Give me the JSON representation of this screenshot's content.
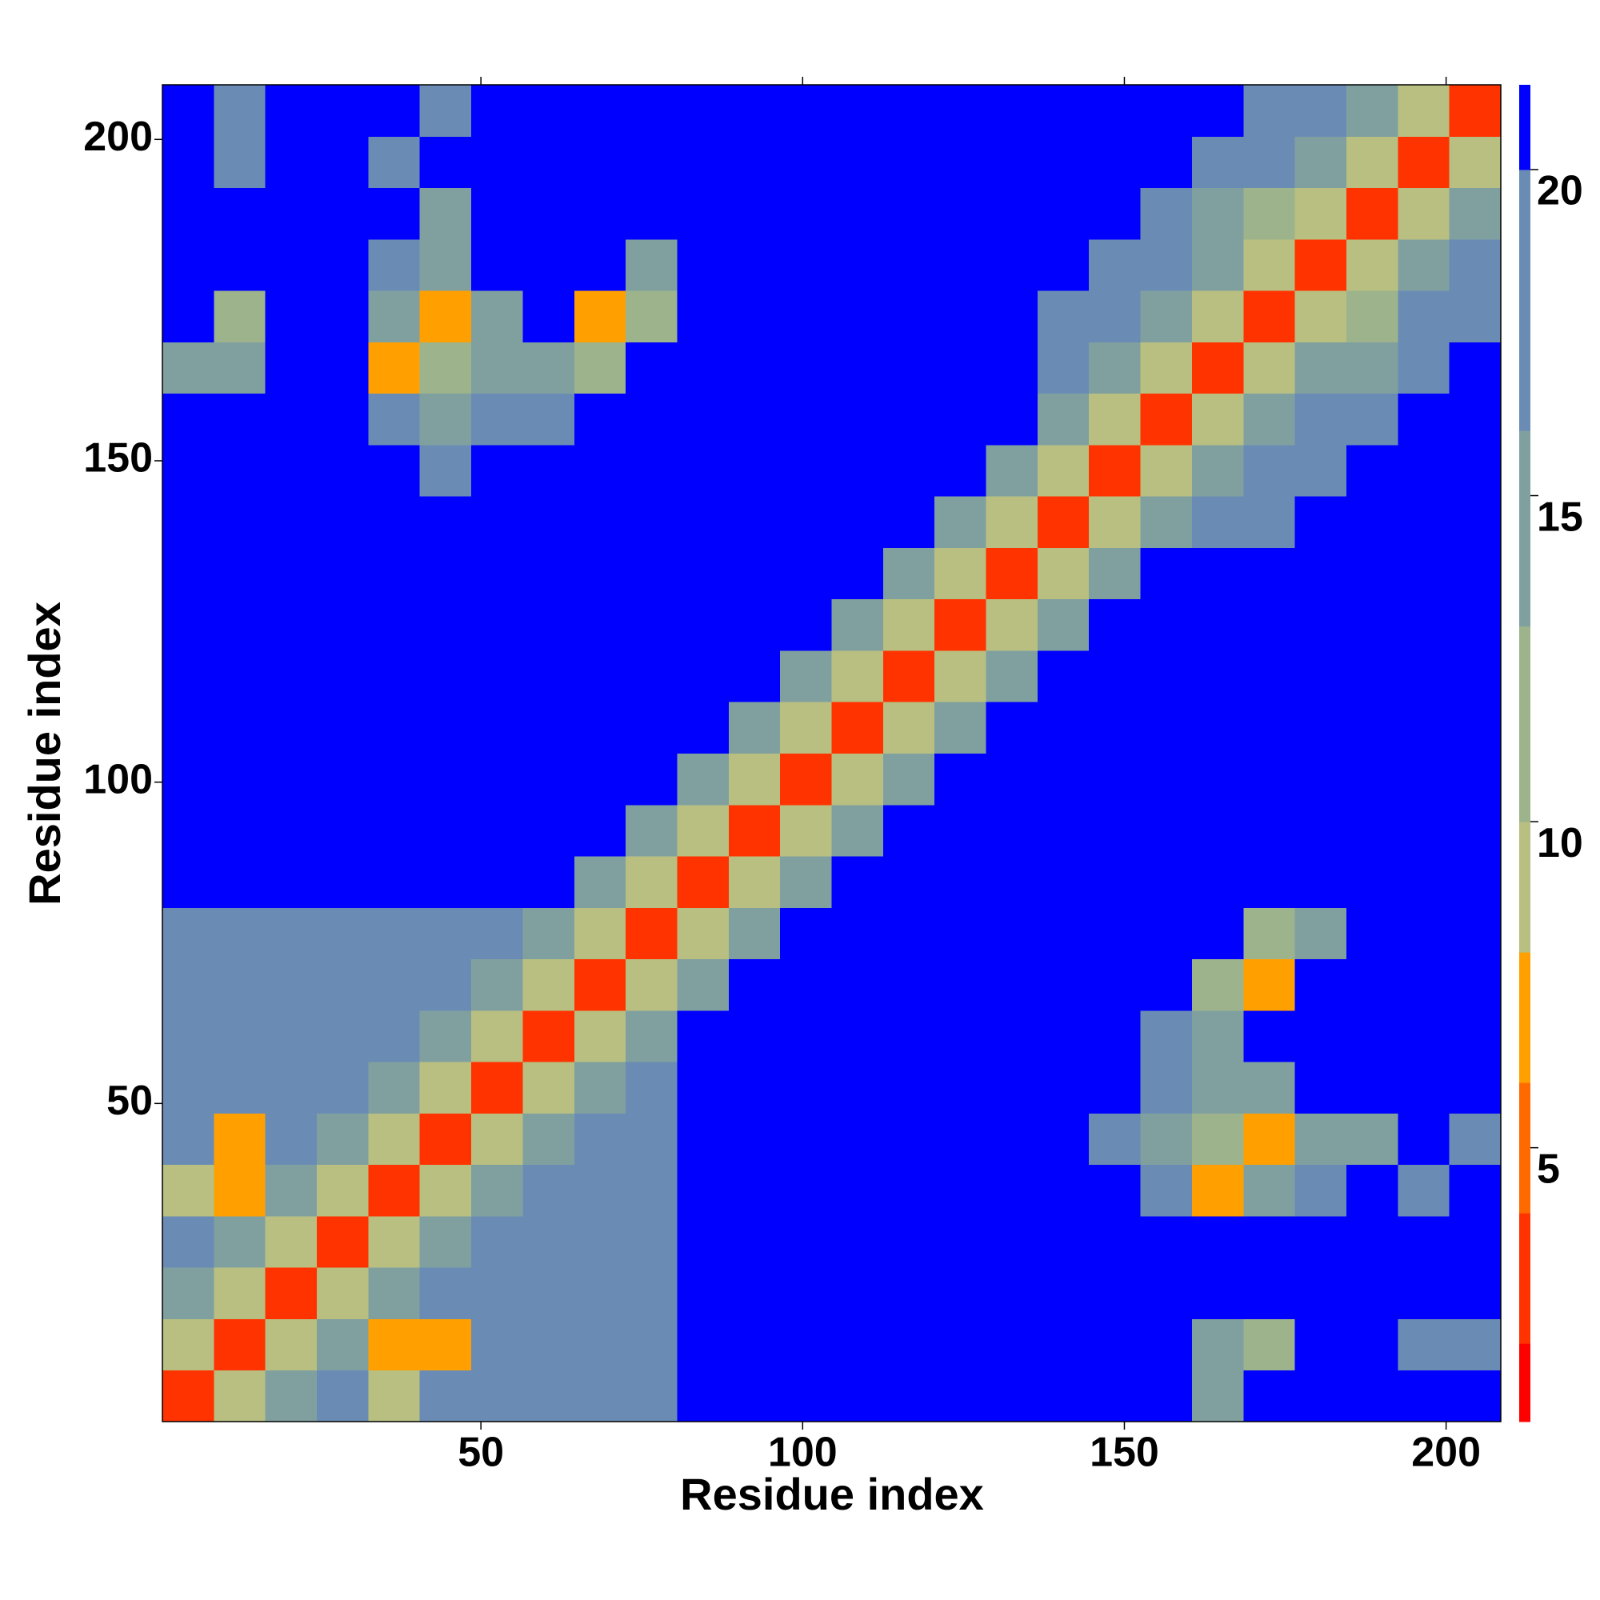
{
  "chart_data": {
    "type": "heatmap",
    "x_label": "Residue index",
    "y_label": "Residue index",
    "xbins": [
      0.5,
      8.5,
      16.5,
      24.5,
      32.5,
      40.5,
      48.5,
      56.5,
      64.5,
      72.5,
      80.5,
      88.5,
      96.5,
      104.5,
      112.5,
      120.5,
      128.5,
      136.5,
      144.5,
      152.5,
      160.5,
      168.5,
      176.5,
      184.5,
      192.5,
      200.5,
      208.5
    ],
    "ybins": [
      0.5,
      8.5,
      16.5,
      24.5,
      32.5,
      40.5,
      48.5,
      56.5,
      64.5,
      72.5,
      80.5,
      88.5,
      96.5,
      104.5,
      112.5,
      120.5,
      128.5,
      136.5,
      144.5,
      152.5,
      160.5,
      168.5,
      176.5,
      184.5,
      192.5,
      200.5,
      208.5
    ],
    "xlim": [
      0.5,
      208.5
    ],
    "ylim": [
      0.5,
      208.5
    ],
    "xticks": [
      50,
      100,
      150,
      200
    ],
    "yticks": [
      50,
      100,
      150,
      200
    ],
    "zlim": [
      0.8,
      21.3
    ],
    "zticks": [
      5,
      10,
      15,
      20
    ],
    "colorscale": [
      [
        2,
        "#ff0000"
      ],
      [
        4,
        "#ff3300"
      ],
      [
        6,
        "#ff6a00"
      ],
      [
        8,
        "#ffa000"
      ],
      [
        10,
        "#b8bf80"
      ],
      [
        13,
        "#9cb38c"
      ],
      [
        16,
        "#80a0a0"
      ],
      [
        20,
        "#6a8cb4"
      ],
      [
        21.3,
        "#0000ff"
      ]
    ],
    "z": [
      [
        4,
        9,
        16,
        17,
        10,
        18,
        18,
        18,
        17,
        19,
        22,
        22,
        22,
        22,
        22,
        22,
        22,
        22,
        22,
        22,
        16,
        22,
        22,
        22,
        22,
        22
      ],
      [
        9,
        4,
        9,
        16,
        8,
        8,
        18,
        18,
        18,
        18,
        22,
        22,
        22,
        22,
        22,
        22,
        22,
        22,
        22,
        22,
        14,
        13,
        22,
        22,
        19,
        19
      ],
      [
        16,
        9,
        4,
        9,
        16,
        17,
        18,
        18,
        18,
        19,
        22,
        22,
        22,
        22,
        22,
        22,
        22,
        22,
        22,
        22,
        22,
        22,
        22,
        22,
        22,
        22
      ],
      [
        17,
        16,
        9,
        4,
        9,
        16,
        17,
        18,
        20,
        20,
        22,
        22,
        22,
        22,
        22,
        22,
        22,
        22,
        22,
        22,
        22,
        22,
        22,
        22,
        22,
        22
      ],
      [
        10,
        8,
        16,
        9,
        4,
        9,
        16,
        17,
        18,
        18,
        22,
        22,
        22,
        22,
        22,
        22,
        22,
        22,
        22,
        17,
        8,
        14,
        17,
        22,
        18,
        22
      ],
      [
        18,
        8,
        17,
        16,
        9,
        4,
        9,
        16,
        17,
        18,
        22,
        22,
        22,
        22,
        22,
        22,
        22,
        22,
        18,
        15,
        12,
        7,
        15,
        16,
        22,
        18
      ],
      [
        18,
        18,
        18,
        17,
        16,
        9,
        4,
        9,
        16,
        17,
        22,
        22,
        22,
        22,
        22,
        22,
        22,
        22,
        22,
        17,
        16,
        15,
        22,
        22,
        22,
        22
      ],
      [
        18,
        18,
        18,
        18,
        17,
        16,
        9,
        4,
        9,
        16,
        22,
        22,
        22,
        22,
        22,
        22,
        22,
        22,
        22,
        18,
        15,
        22,
        22,
        22,
        22,
        22
      ],
      [
        17,
        18,
        18,
        20,
        18,
        17,
        16,
        9,
        4,
        9,
        16,
        22,
        22,
        22,
        22,
        22,
        22,
        22,
        22,
        22,
        12,
        8,
        22,
        22,
        22,
        22
      ],
      [
        19,
        18,
        19,
        20,
        18,
        18,
        17,
        16,
        9,
        4,
        9,
        14,
        22,
        22,
        22,
        22,
        22,
        22,
        22,
        22,
        22,
        13,
        16,
        22,
        22,
        22
      ],
      [
        22,
        22,
        22,
        22,
        22,
        22,
        22,
        22,
        16,
        9,
        4,
        9,
        14,
        22,
        22,
        22,
        22,
        22,
        22,
        22,
        22,
        22,
        22,
        22,
        22,
        22
      ],
      [
        22,
        22,
        22,
        22,
        22,
        22,
        22,
        22,
        22,
        14,
        9,
        4,
        9,
        14,
        22,
        22,
        22,
        22,
        22,
        22,
        22,
        22,
        22,
        22,
        22,
        22
      ],
      [
        22,
        22,
        22,
        22,
        22,
        22,
        22,
        22,
        22,
        22,
        14,
        9,
        4,
        9,
        14,
        22,
        22,
        22,
        22,
        22,
        22,
        22,
        22,
        22,
        22,
        22
      ],
      [
        22,
        22,
        22,
        22,
        22,
        22,
        22,
        22,
        22,
        22,
        22,
        14,
        9,
        4,
        9,
        14,
        22,
        22,
        22,
        22,
        22,
        22,
        22,
        22,
        22,
        22
      ],
      [
        22,
        22,
        22,
        22,
        22,
        22,
        22,
        22,
        22,
        22,
        22,
        22,
        14,
        9,
        4,
        9,
        14,
        22,
        22,
        22,
        22,
        22,
        22,
        22,
        22,
        22
      ],
      [
        22,
        22,
        22,
        22,
        22,
        22,
        22,
        22,
        22,
        22,
        22,
        22,
        22,
        14,
        9,
        4,
        9,
        14,
        22,
        22,
        22,
        22,
        22,
        22,
        22,
        22
      ],
      [
        22,
        22,
        22,
        22,
        22,
        22,
        22,
        22,
        22,
        22,
        22,
        22,
        22,
        22,
        14,
        9,
        4,
        9,
        16,
        22,
        22,
        22,
        22,
        22,
        22,
        22
      ],
      [
        22,
        22,
        22,
        22,
        22,
        22,
        22,
        22,
        22,
        22,
        22,
        22,
        22,
        22,
        22,
        14,
        9,
        4,
        9,
        15,
        17,
        19,
        22,
        22,
        22,
        22
      ],
      [
        22,
        22,
        22,
        22,
        22,
        18,
        22,
        22,
        22,
        22,
        22,
        22,
        22,
        22,
        22,
        22,
        16,
        9,
        4,
        9,
        15,
        17,
        19,
        22,
        22,
        22
      ],
      [
        22,
        22,
        22,
        22,
        17,
        15,
        17,
        18,
        22,
        22,
        22,
        22,
        22,
        22,
        22,
        22,
        22,
        15,
        9,
        4,
        9,
        15,
        17,
        19,
        22,
        22
      ],
      [
        16,
        14,
        22,
        22,
        8,
        12,
        16,
        15,
        12,
        22,
        22,
        22,
        22,
        22,
        22,
        22,
        22,
        17,
        15,
        9,
        4,
        9,
        15,
        14,
        19,
        22
      ],
      [
        22,
        13,
        22,
        22,
        14,
        7,
        15,
        22,
        8,
        13,
        22,
        22,
        22,
        22,
        22,
        22,
        22,
        19,
        17,
        15,
        9,
        4,
        9,
        12,
        17,
        19
      ],
      [
        22,
        22,
        22,
        22,
        17,
        15,
        22,
        22,
        22,
        16,
        22,
        22,
        22,
        22,
        22,
        22,
        22,
        22,
        19,
        17,
        15,
        9,
        4,
        9,
        15,
        17
      ],
      [
        22,
        22,
        22,
        22,
        22,
        16,
        22,
        22,
        22,
        22,
        22,
        22,
        22,
        22,
        22,
        22,
        22,
        22,
        22,
        19,
        14,
        12,
        9,
        4,
        9,
        15
      ],
      [
        22,
        19,
        22,
        22,
        18,
        22,
        22,
        22,
        22,
        22,
        22,
        22,
        22,
        22,
        22,
        22,
        22,
        22,
        22,
        22,
        19,
        17,
        15,
        9,
        4,
        9
      ],
      [
        22,
        19,
        22,
        22,
        22,
        18,
        22,
        22,
        22,
        22,
        22,
        22,
        22,
        22,
        22,
        22,
        22,
        22,
        22,
        22,
        22,
        19,
        17,
        15,
        9,
        4
      ]
    ]
  }
}
